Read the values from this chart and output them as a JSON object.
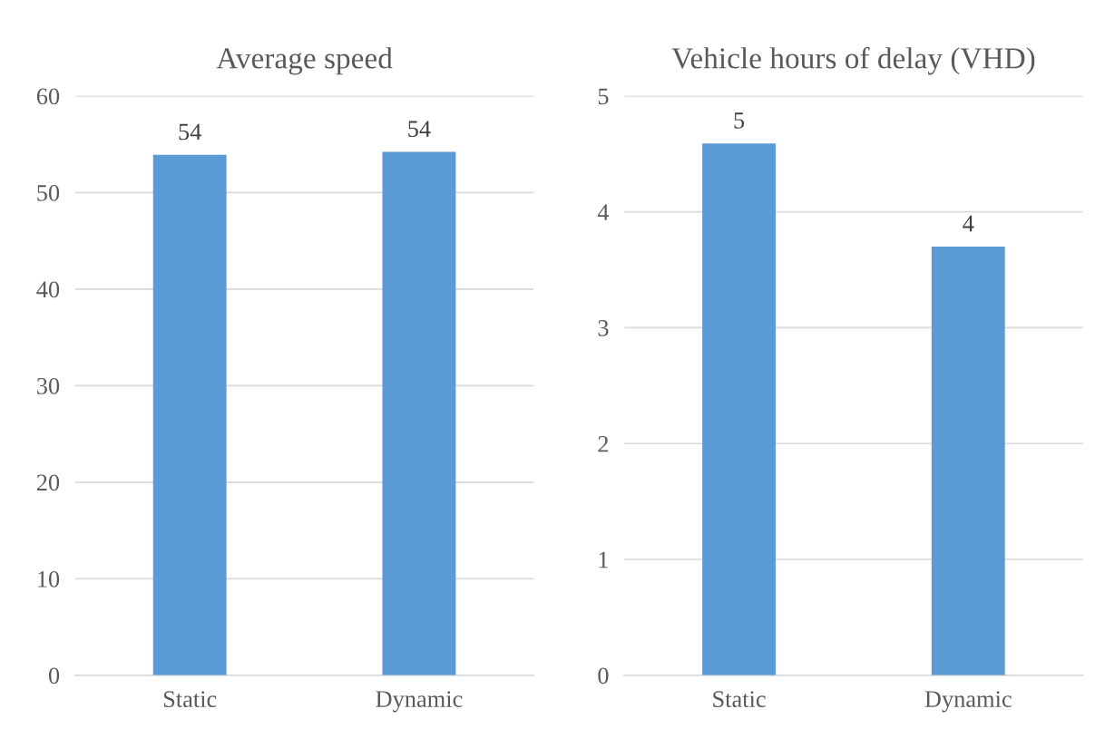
{
  "chart_data": [
    {
      "type": "bar",
      "title": "Average speed",
      "categories": [
        "Static",
        "Dynamic"
      ],
      "values": [
        53.9,
        54.2
      ],
      "value_labels": [
        "54",
        "54"
      ],
      "color": "#5b9bd5",
      "ylim": [
        0,
        60
      ],
      "yticks": [
        0,
        10,
        20,
        30,
        40,
        50,
        60
      ],
      "grid": "y",
      "legend": false
    },
    {
      "type": "bar",
      "title": "Vehicle hours of delay (VHD)",
      "categories": [
        "Static",
        "Dynamic"
      ],
      "values": [
        4.59,
        3.7
      ],
      "value_labels": [
        "5",
        "4"
      ],
      "color": "#5b9bd5",
      "ylim": [
        0,
        5
      ],
      "yticks": [
        0,
        1,
        2,
        3,
        4,
        5
      ],
      "grid": "y",
      "legend": false
    }
  ]
}
